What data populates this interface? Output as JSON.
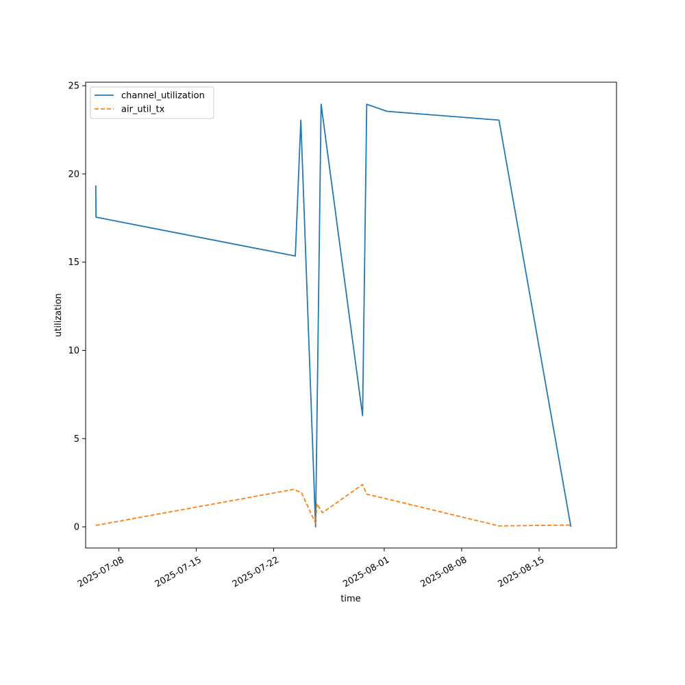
{
  "chart_data": {
    "type": "line",
    "title": "",
    "xlabel": "time",
    "ylabel": "utilization",
    "x_tick_labels": [
      "2025-07-08",
      "2025-07-15",
      "2025-07-22",
      "2025-08-01",
      "2025-08-08",
      "2025-08-15"
    ],
    "y_tick_labels": [
      "0",
      "5",
      "10",
      "15",
      "20",
      "25"
    ],
    "y_ticks": [
      0,
      5,
      10,
      15,
      20,
      25
    ],
    "xlim": [
      "2025-07-05",
      "2025-08-22"
    ],
    "ylim": [
      -1.2,
      25.2
    ],
    "grid": false,
    "legend_position": "upper-left",
    "series": [
      {
        "name": "channel_utilization",
        "color": "#1f77b4",
        "line_style": "solid",
        "points": [
          [
            "2025-07-05T22:00",
            19.35
          ],
          [
            "2025-07-05T22:30",
            17.55
          ],
          [
            "2025-07-23T23:00",
            15.35
          ],
          [
            "2025-07-24T11:00",
            23.05
          ],
          [
            "2025-07-25T19:00",
            0.0
          ],
          [
            "2025-07-26T07:00",
            23.95
          ],
          [
            "2025-07-30T01:00",
            6.3
          ],
          [
            "2025-07-30T10:00",
            23.95
          ],
          [
            "2025-08-01T06:00",
            23.55
          ],
          [
            "2025-08-11T09:00",
            23.05
          ],
          [
            "2025-08-17T21:00",
            0.0
          ]
        ]
      },
      {
        "name": "air_util_tx",
        "color": "#ff7f0e",
        "line_style": "dashed",
        "points": [
          [
            "2025-07-05T22:00",
            0.08
          ],
          [
            "2025-07-23T19:00",
            2.12
          ],
          [
            "2025-07-24T12:00",
            1.95
          ],
          [
            "2025-07-25T19:00",
            0.2
          ],
          [
            "2025-07-25T22:00",
            1.32
          ],
          [
            "2025-07-26T10:00",
            0.8
          ],
          [
            "2025-07-30T01:00",
            2.4
          ],
          [
            "2025-07-30T10:00",
            1.85
          ],
          [
            "2025-08-01T06:00",
            1.58
          ],
          [
            "2025-08-11T09:00",
            0.05
          ],
          [
            "2025-08-17T21:00",
            0.1
          ]
        ]
      }
    ]
  }
}
